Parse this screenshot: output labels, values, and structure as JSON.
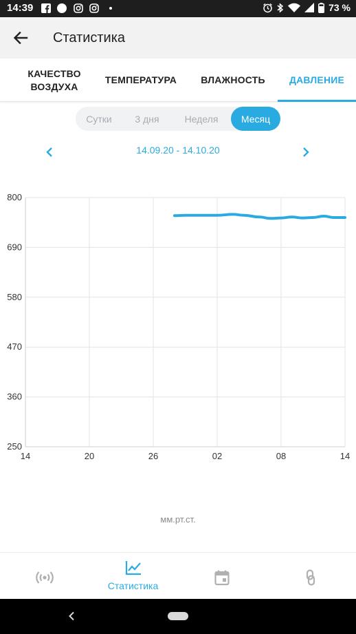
{
  "status_bar": {
    "time": "14:39",
    "battery": "73 %",
    "left_icons": [
      "facebook-icon",
      "circle-icon",
      "instagram-icon",
      "instagram-icon",
      "dot-icon"
    ],
    "right_icons": [
      "alarm-icon",
      "bluetooth-icon",
      "wifi-icon",
      "signal-icon",
      "battery-icon"
    ]
  },
  "app_bar": {
    "title": "Статистика"
  },
  "tabs": [
    {
      "label": "КАЧЕСТВО ВОЗДУХА",
      "active": false
    },
    {
      "label": "ТЕМПЕРАТУРА",
      "active": false
    },
    {
      "label": "ВЛАЖНОСТЬ",
      "active": false
    },
    {
      "label": "ДАВЛЕНИЕ",
      "active": true
    }
  ],
  "periods": [
    {
      "label": "Сутки",
      "active": false
    },
    {
      "label": "3 дня",
      "active": false
    },
    {
      "label": "Неделя",
      "active": false
    },
    {
      "label": "Месяц",
      "active": true
    }
  ],
  "date_range": "14.09.20 - 14.10.20",
  "colors": {
    "accent": "#29abe2",
    "grid": "#e3e3e3",
    "axis_text": "#333333"
  },
  "chart_data": {
    "type": "line",
    "title": "",
    "xlabel": "",
    "ylabel": "мм.рт.ст.",
    "x_tick_labels": [
      "14",
      "20",
      "26",
      "02",
      "08",
      "14"
    ],
    "y_tick_labels": [
      "800",
      "690",
      "580",
      "470",
      "360",
      "250"
    ],
    "ylim": [
      250,
      800
    ],
    "grid": true,
    "x_day_range": [
      0,
      30
    ],
    "series": [
      {
        "values": [
          {
            "day": 14.0,
            "y": 760
          },
          {
            "day": 15.0,
            "y": 761
          },
          {
            "day": 16.5,
            "y": 761
          },
          {
            "day": 18.0,
            "y": 761
          },
          {
            "day": 19.5,
            "y": 763
          },
          {
            "day": 20.5,
            "y": 761
          },
          {
            "day": 22.0,
            "y": 757
          },
          {
            "day": 23.0,
            "y": 754
          },
          {
            "day": 24.0,
            "y": 755
          },
          {
            "day": 25.0,
            "y": 757
          },
          {
            "day": 26.0,
            "y": 755
          },
          {
            "day": 27.0,
            "y": 756
          },
          {
            "day": 28.0,
            "y": 759
          },
          {
            "day": 29.0,
            "y": 756
          },
          {
            "day": 30.0,
            "y": 756
          }
        ]
      }
    ]
  },
  "unit_label": "мм.рт.ст.",
  "bottom_nav": [
    {
      "icon": "sensor-broadcast-icon",
      "label": "",
      "active": false
    },
    {
      "icon": "chart-line-icon",
      "label": "Статистика",
      "active": true
    },
    {
      "icon": "calendar-icon",
      "label": "",
      "active": false
    },
    {
      "icon": "link-icon",
      "label": "",
      "active": false
    }
  ]
}
